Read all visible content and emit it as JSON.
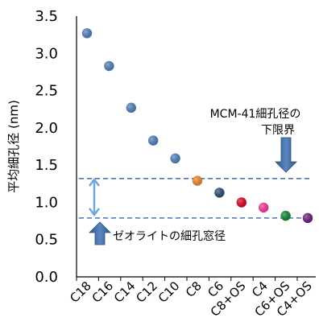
{
  "chart_data": {
    "type": "scatter",
    "ylabel": "平均細孔径 (nm)",
    "xlabel": "",
    "ylim": [
      0,
      3.5
    ],
    "yticks": [
      "0.0",
      "0.5",
      "1.0",
      "1.5",
      "2.0",
      "2.5",
      "3.0",
      "3.5"
    ],
    "grid": false,
    "categories": [
      "C18",
      "C16",
      "C14",
      "C12",
      "C10",
      "C8",
      "C6",
      "C8+OS",
      "C4",
      "C6+OS",
      "C4+OS"
    ],
    "values": [
      3.27,
      2.83,
      2.27,
      1.83,
      1.59,
      1.29,
      1.13,
      1.0,
      0.93,
      0.82,
      0.79
    ],
    "point_colors": [
      "#4f81bd",
      "#4f81bd",
      "#4f81bd",
      "#4f81bd",
      "#4f81bd",
      "#f08a24",
      "#1f4e79",
      "#e0001a",
      "#ff3399",
      "#0b8a2e",
      "#6a1b7a"
    ],
    "reference_lines": [
      {
        "value": 1.32,
        "label_lines": [
          "MCM-41細孔径の",
          "下限界"
        ]
      },
      {
        "value": 0.79,
        "label_lines": [
          "ゼオライトの細孔窓径"
        ]
      }
    ],
    "colors": {
      "dashed_line": "#4a78b5",
      "arrow": "#6fa8dc",
      "block_arrow": "#2f5a8f"
    }
  }
}
